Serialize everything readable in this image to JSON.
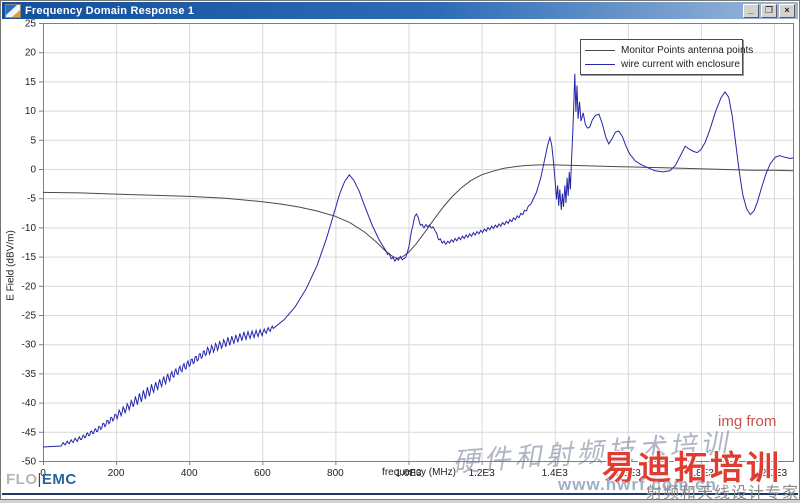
{
  "window": {
    "title": "Frequency Domain Response 1",
    "controls": {
      "minimize": "_",
      "restore": "❐",
      "close": "×"
    }
  },
  "logo": {
    "flo": "FLO",
    "sep": "|",
    "emc": "EMC"
  },
  "watermarks": {
    "img_from": "img from",
    "calligraphy": "硬件和射频技术培训",
    "brand": "易迪拓培训",
    "url": "www.hwrf.com.cn",
    "tagline": "射频和天线设计专家"
  },
  "chart_data": {
    "type": "line",
    "title": "",
    "xlabel": "frequency (MHz)",
    "ylabel": "E Field (dBV/m)",
    "xlim": [
      0,
      2052
    ],
    "ylim": [
      -50,
      25
    ],
    "grid": true,
    "legend_position": "top-right",
    "x_ticks": [
      {
        "v": 0,
        "label": "0"
      },
      {
        "v": 200,
        "label": "200"
      },
      {
        "v": 400,
        "label": "400"
      },
      {
        "v": 600,
        "label": "600"
      },
      {
        "v": 800,
        "label": "800"
      },
      {
        "v": 1000,
        "label": "1.0E3"
      },
      {
        "v": 1200,
        "label": "1.2E3"
      },
      {
        "v": 1400,
        "label": "1.4E3"
      },
      {
        "v": 1600,
        "label": "1.6E3"
      },
      {
        "v": 1800,
        "label": "1.8E3"
      },
      {
        "v": 2000,
        "label": "2.0E3"
      }
    ],
    "y_ticks": [
      25,
      20,
      15,
      10,
      5,
      0,
      -5,
      -10,
      -15,
      -20,
      -25,
      -30,
      -35,
      -40,
      -45,
      -50
    ],
    "series": [
      {
        "name": "Monitor Points antenna points",
        "color": "#4a4a4a",
        "points": [
          [
            0,
            -4.0
          ],
          [
            100,
            -4.1
          ],
          [
            200,
            -4.3
          ],
          [
            300,
            -4.5
          ],
          [
            400,
            -4.7
          ],
          [
            500,
            -5.0
          ],
          [
            550,
            -5.3
          ],
          [
            600,
            -5.6
          ],
          [
            650,
            -6.0
          ],
          [
            700,
            -6.5
          ],
          [
            750,
            -7.2
          ],
          [
            800,
            -8.1
          ],
          [
            840,
            -9.2
          ],
          [
            880,
            -10.8
          ],
          [
            910,
            -12.4
          ],
          [
            935,
            -13.9
          ],
          [
            955,
            -14.9
          ],
          [
            968,
            -15.3
          ],
          [
            982,
            -15.1
          ],
          [
            1000,
            -14.3
          ],
          [
            1020,
            -12.9
          ],
          [
            1045,
            -10.8
          ],
          [
            1070,
            -8.6
          ],
          [
            1095,
            -6.5
          ],
          [
            1120,
            -4.7
          ],
          [
            1145,
            -3.2
          ],
          [
            1170,
            -2.0
          ],
          [
            1200,
            -1.0
          ],
          [
            1230,
            -0.4
          ],
          [
            1260,
            0.1
          ],
          [
            1290,
            0.4
          ],
          [
            1320,
            0.6
          ],
          [
            1360,
            0.7
          ],
          [
            1400,
            0.7
          ],
          [
            1460,
            0.6
          ],
          [
            1520,
            0.5
          ],
          [
            1580,
            0.4
          ],
          [
            1640,
            0.3
          ],
          [
            1700,
            0.2
          ],
          [
            1760,
            0.1
          ],
          [
            1820,
            0.0
          ],
          [
            1880,
            -0.1
          ],
          [
            1940,
            -0.2
          ],
          [
            2000,
            -0.2
          ],
          [
            2052,
            -0.3
          ]
        ]
      },
      {
        "name": "wire current with enclosure",
        "color": "#2626a8",
        "points": [
          [
            0,
            -47.6
          ],
          [
            50,
            -47.2
          ],
          [
            100,
            -46.2
          ],
          [
            150,
            -44.6
          ],
          [
            200,
            -42.3
          ],
          [
            250,
            -39.9
          ],
          [
            300,
            -37.6
          ],
          [
            350,
            -35.4
          ],
          [
            400,
            -33.3
          ],
          [
            450,
            -31.2
          ],
          [
            500,
            -29.7
          ],
          [
            550,
            -28.6
          ],
          [
            600,
            -28.0
          ],
          [
            630,
            -27.2
          ],
          [
            660,
            -25.8
          ],
          [
            690,
            -23.6
          ],
          [
            720,
            -20.5
          ],
          [
            750,
            -16.5
          ],
          [
            775,
            -12.0
          ],
          [
            795,
            -7.8
          ],
          [
            812,
            -4.2
          ],
          [
            825,
            -2.2
          ],
          [
            838,
            -1.0
          ],
          [
            850,
            -1.9
          ],
          [
            865,
            -3.8
          ],
          [
            880,
            -6.3
          ],
          [
            900,
            -9.5
          ],
          [
            920,
            -12.2
          ],
          [
            940,
            -14.2
          ],
          [
            955,
            -15.3
          ],
          [
            965,
            -15.6
          ],
          [
            978,
            -15.2
          ],
          [
            988,
            -15.5
          ],
          [
            998,
            -14.2
          ],
          [
            1006,
            -11.5
          ],
          [
            1014,
            -8.9
          ],
          [
            1022,
            -7.5
          ],
          [
            1030,
            -9.2
          ],
          [
            1040,
            -9.9
          ],
          [
            1052,
            -9.7
          ],
          [
            1062,
            -9.9
          ],
          [
            1072,
            -10.3
          ],
          [
            1080,
            -11.7
          ],
          [
            1090,
            -12.4
          ],
          [
            1102,
            -12.7
          ],
          [
            1115,
            -12.4
          ],
          [
            1130,
            -12.1
          ],
          [
            1150,
            -11.7
          ],
          [
            1175,
            -11.2
          ],
          [
            1200,
            -10.7
          ],
          [
            1225,
            -10.1
          ],
          [
            1250,
            -9.6
          ],
          [
            1275,
            -9.0
          ],
          [
            1300,
            -8.2
          ],
          [
            1318,
            -7.3
          ],
          [
            1335,
            -6.0
          ],
          [
            1350,
            -4.0
          ],
          [
            1362,
            -1.5
          ],
          [
            1372,
            1.5
          ],
          [
            1381,
            4.2
          ],
          [
            1387,
            5.4
          ],
          [
            1392,
            4.0
          ],
          [
            1397,
            1.0
          ],
          [
            1401,
            -2.0
          ],
          [
            1405,
            -5.2
          ],
          [
            1408,
            -2.8
          ],
          [
            1411,
            -6.3
          ],
          [
            1414,
            -3.5
          ],
          [
            1418,
            -7.0
          ],
          [
            1421,
            -4.2
          ],
          [
            1424,
            -6.5
          ],
          [
            1428,
            -2.8
          ],
          [
            1431,
            -5.8
          ],
          [
            1434,
            -1.5
          ],
          [
            1437,
            -4.6
          ],
          [
            1440,
            -0.5
          ],
          [
            1443,
            -3.5
          ],
          [
            1446,
            1.5
          ],
          [
            1449,
            5.5
          ],
          [
            1452,
            10.5
          ],
          [
            1455,
            16.3
          ],
          [
            1458,
            9.8
          ],
          [
            1461,
            14.3
          ],
          [
            1464,
            8.6
          ],
          [
            1468,
            11.5
          ],
          [
            1472,
            8.2
          ],
          [
            1478,
            9.6
          ],
          [
            1484,
            7.6
          ],
          [
            1490,
            7.0
          ],
          [
            1496,
            7.2
          ],
          [
            1503,
            8.4
          ],
          [
            1512,
            9.2
          ],
          [
            1521,
            9.4
          ],
          [
            1530,
            7.8
          ],
          [
            1540,
            5.4
          ],
          [
            1548,
            4.3
          ],
          [
            1557,
            5.2
          ],
          [
            1566,
            6.3
          ],
          [
            1575,
            6.5
          ],
          [
            1585,
            5.6
          ],
          [
            1595,
            3.9
          ],
          [
            1605,
            2.6
          ],
          [
            1620,
            1.4
          ],
          [
            1635,
            0.8
          ],
          [
            1655,
            0.2
          ],
          [
            1675,
            -0.3
          ],
          [
            1695,
            -0.5
          ],
          [
            1715,
            -0.3
          ],
          [
            1730,
            0.6
          ],
          [
            1745,
            2.4
          ],
          [
            1757,
            3.9
          ],
          [
            1768,
            3.4
          ],
          [
            1780,
            3.0
          ],
          [
            1790,
            2.8
          ],
          [
            1800,
            3.3
          ],
          [
            1812,
            4.6
          ],
          [
            1825,
            6.8
          ],
          [
            1840,
            9.8
          ],
          [
            1855,
            12.2
          ],
          [
            1866,
            13.2
          ],
          [
            1876,
            12.3
          ],
          [
            1886,
            9.0
          ],
          [
            1895,
            4.5
          ],
          [
            1905,
            -0.5
          ],
          [
            1915,
            -4.5
          ],
          [
            1925,
            -6.8
          ],
          [
            1935,
            -7.8
          ],
          [
            1945,
            -7.2
          ],
          [
            1955,
            -5.6
          ],
          [
            1965,
            -3.4
          ],
          [
            1978,
            -0.8
          ],
          [
            1990,
            0.9
          ],
          [
            2003,
            2.0
          ],
          [
            2015,
            2.3
          ],
          [
            2030,
            2.0
          ],
          [
            2045,
            1.8
          ],
          [
            2052,
            1.9
          ]
        ],
        "oscillation_zones": [
          {
            "from": 8,
            "to": 632,
            "period": 11,
            "amp_envelope": [
              [
                8,
                0.2
              ],
              [
                150,
                0.6
              ],
              [
                280,
                0.9
              ],
              [
                480,
                0.9
              ],
              [
                632,
                0.5
              ]
            ]
          },
          {
            "from": 935,
            "to": 1330,
            "period": 10,
            "amp_envelope": [
              [
                935,
                0.25
              ],
              [
                1330,
                0.25
              ]
            ]
          }
        ]
      }
    ]
  }
}
